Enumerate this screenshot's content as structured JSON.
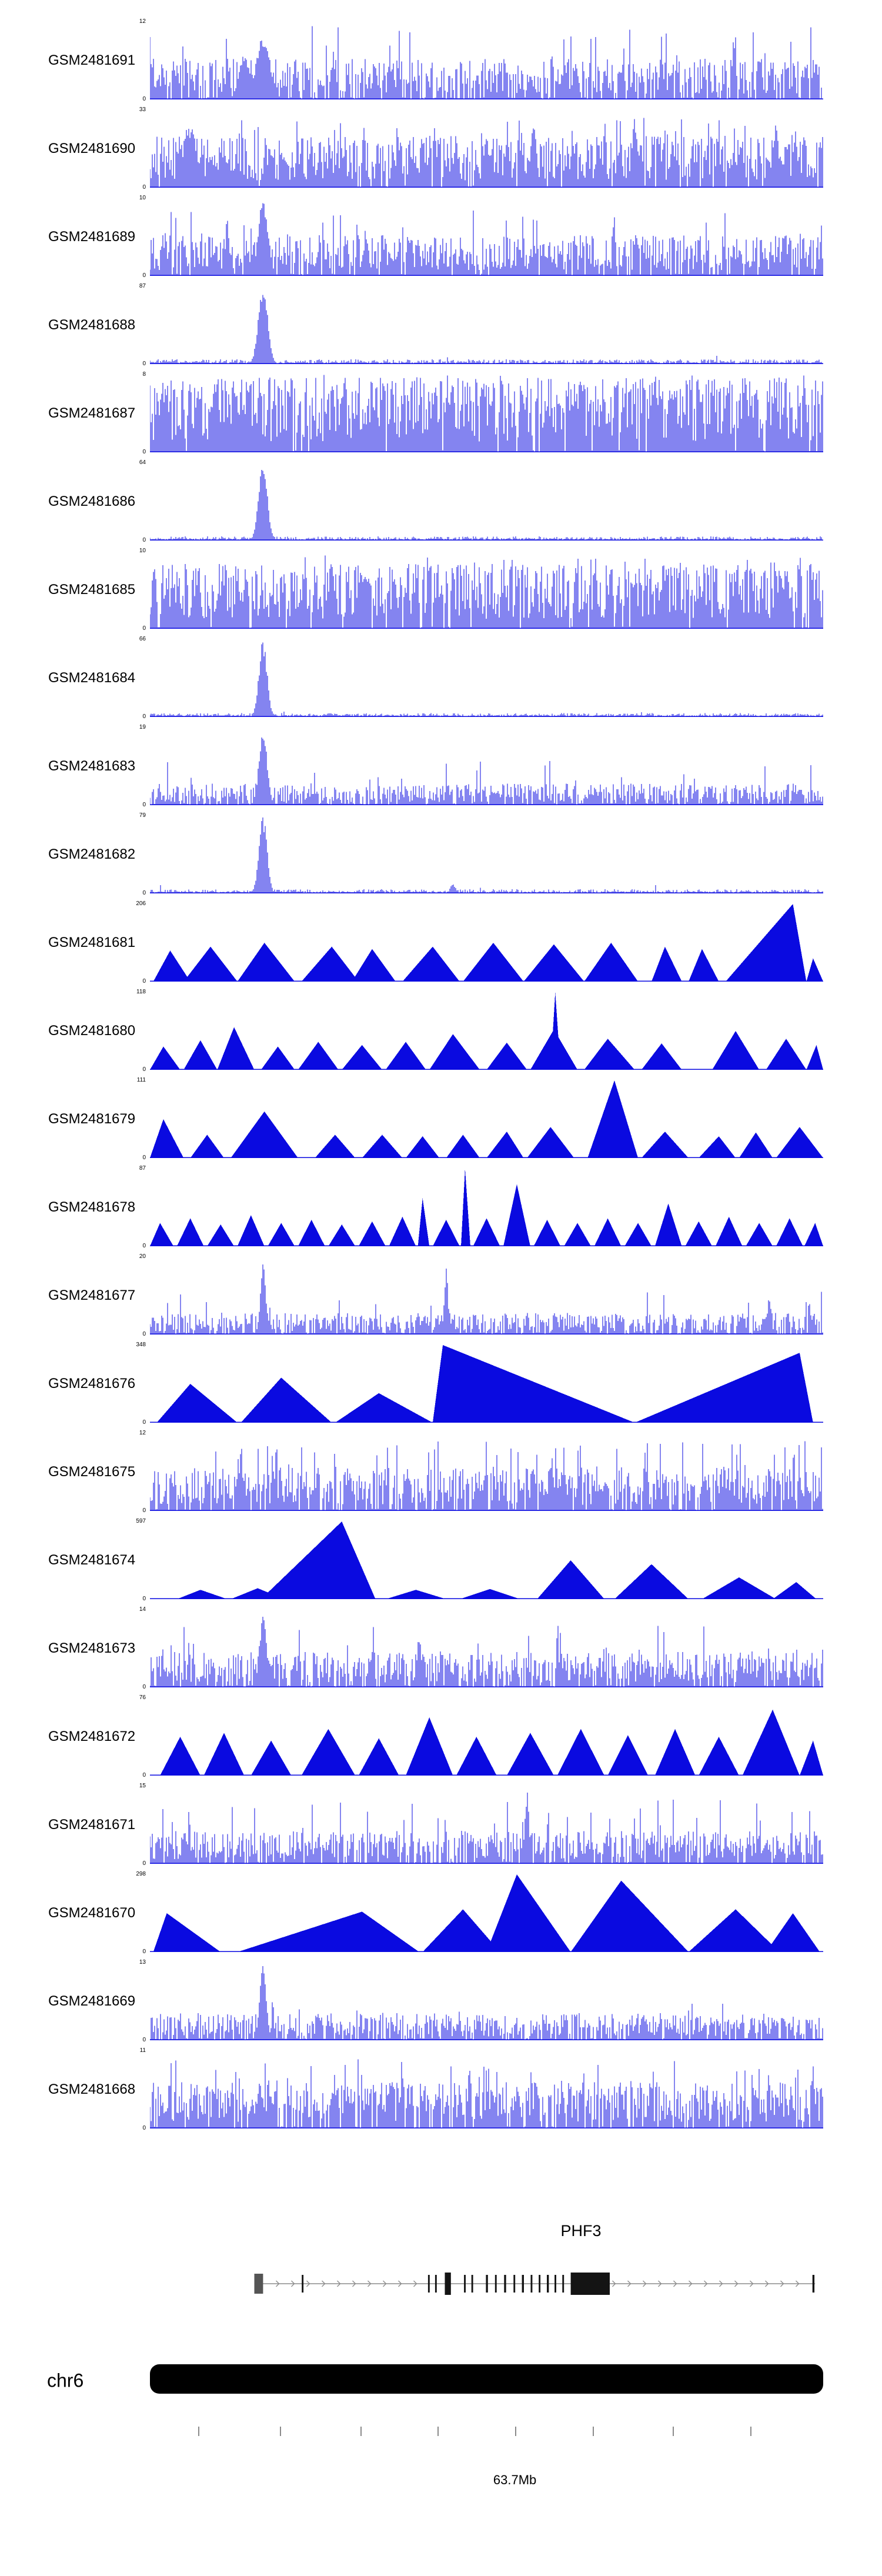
{
  "colors": {
    "signal": "#0a0ae0",
    "exon": "#141414",
    "first_exon": "#555555",
    "gene_line": "#8c8c8c",
    "ideogram": "#000000",
    "axis_tick": "#8a8a8a",
    "text": "#000000",
    "background": "#ffffff"
  },
  "chart_data": {
    "type": "area",
    "title": "",
    "x_axis": {
      "chromosome": "chr6",
      "tick_label": "63.7Mb",
      "label_position": 0.542,
      "tick_positions": [
        0.072,
        0.193,
        0.313,
        0.427,
        0.542,
        0.658,
        0.776,
        0.892
      ]
    },
    "ideogram": {
      "label": "chr6"
    },
    "gene_model": {
      "label": "PHF3",
      "line_start": 0.155,
      "line_end": 0.988,
      "strand_arrows": "right",
      "exons": [
        {
          "x": 0.155,
          "w": 0.013,
          "h": "first"
        },
        {
          "x": 0.2255,
          "w": 0.0025,
          "h": "thin"
        },
        {
          "x": 0.413,
          "w": 0.0025,
          "h": "thin"
        },
        {
          "x": 0.4235,
          "w": 0.0025,
          "h": "thin"
        },
        {
          "x": 0.438,
          "w": 0.009,
          "h": "thick"
        },
        {
          "x": 0.4665,
          "w": 0.0025,
          "h": "thin"
        },
        {
          "x": 0.4775,
          "w": 0.0025,
          "h": "thin"
        },
        {
          "x": 0.499,
          "w": 0.003,
          "h": "thin"
        },
        {
          "x": 0.5125,
          "w": 0.0025,
          "h": "thin"
        },
        {
          "x": 0.526,
          "w": 0.003,
          "h": "thin"
        },
        {
          "x": 0.54,
          "w": 0.0025,
          "h": "thin"
        },
        {
          "x": 0.5525,
          "w": 0.003,
          "h": "thin"
        },
        {
          "x": 0.5655,
          "w": 0.0025,
          "h": "thin"
        },
        {
          "x": 0.5775,
          "w": 0.0025,
          "h": "thin"
        },
        {
          "x": 0.5895,
          "w": 0.003,
          "h": "thin"
        },
        {
          "x": 0.601,
          "w": 0.0025,
          "h": "thin"
        },
        {
          "x": 0.6125,
          "w": 0.0025,
          "h": "thin"
        },
        {
          "x": 0.625,
          "w": 0.058,
          "h": "thick"
        },
        {
          "x": 0.984,
          "w": 0.003,
          "h": "thin"
        }
      ]
    },
    "tracks": [
      {
        "name": "GSM2481691",
        "ymax": 12,
        "ymin": 0,
        "style": "noise",
        "seed": 1,
        "base": 0.3,
        "zero": 0.18,
        "tall": 0.05,
        "tallmin": 0.5,
        "tallmax": 0.95,
        "peaks": [
          [
            0.168,
            0.85,
            0.01
          ],
          [
            0.14,
            0.6,
            0.008
          ]
        ]
      },
      {
        "name": "GSM2481690",
        "ymax": 33,
        "ymin": 0,
        "style": "noise",
        "seed": 2,
        "base": 0.38,
        "zero": 0.08,
        "tall": 0.1,
        "tallmin": 0.5,
        "tallmax": 0.9,
        "peaks": [
          [
            0.06,
            0.8,
            0.01
          ],
          [
            0.57,
            0.95,
            0.004
          ],
          [
            0.72,
            0.9,
            0.004
          ],
          [
            0.93,
            0.85,
            0.004
          ]
        ]
      },
      {
        "name": "GSM2481689",
        "ymax": 10,
        "ymin": 0,
        "style": "noise",
        "seed": 3,
        "base": 0.3,
        "zero": 0.12,
        "tall": 0.07,
        "tallmin": 0.45,
        "tallmax": 0.85,
        "peaks": [
          [
            0.168,
            1.0,
            0.007
          ]
        ]
      },
      {
        "name": "GSM2481688",
        "ymax": 87,
        "ymin": 0,
        "style": "noise",
        "seed": 4,
        "base": 0.035,
        "zero": 0.25,
        "tall": 0.004,
        "tallmin": 0.06,
        "tallmax": 0.12,
        "peaks": [
          [
            0.168,
            1.0,
            0.007
          ]
        ]
      },
      {
        "name": "GSM2481687",
        "ymax": 8,
        "ymin": 0,
        "style": "noise",
        "seed": 5,
        "base": 0.55,
        "zero": 0.03,
        "tall": 0.22,
        "tallmin": 0.6,
        "tallmax": 1.0,
        "peaks": [
          [
            0.45,
            1.0,
            0.003
          ],
          [
            0.75,
            1.0,
            0.004
          ]
        ]
      },
      {
        "name": "GSM2481686",
        "ymax": 64,
        "ymin": 0,
        "style": "noise",
        "seed": 6,
        "base": 0.03,
        "zero": 0.3,
        "tall": 0.003,
        "tallmin": 0.05,
        "tallmax": 0.1,
        "peaks": [
          [
            0.168,
            1.0,
            0.0065
          ]
        ]
      },
      {
        "name": "GSM2481685",
        "ymax": 10,
        "ymin": 0,
        "style": "noise",
        "seed": 7,
        "base": 0.48,
        "zero": 0.05,
        "tall": 0.15,
        "tallmin": 0.55,
        "tallmax": 0.95,
        "peaks": [
          [
            0.27,
            1.0,
            0.004
          ]
        ]
      },
      {
        "name": "GSM2481684",
        "ymax": 66,
        "ymin": 0,
        "style": "noise",
        "seed": 8,
        "base": 0.028,
        "zero": 0.3,
        "tall": 0.003,
        "tallmin": 0.05,
        "tallmax": 0.1,
        "peaks": [
          [
            0.168,
            1.0,
            0.006
          ]
        ]
      },
      {
        "name": "GSM2481683",
        "ymax": 19,
        "ymin": 0,
        "style": "noise",
        "seed": 9,
        "base": 0.16,
        "zero": 0.15,
        "tall": 0.03,
        "tallmin": 0.3,
        "tallmax": 0.6,
        "peaks": [
          [
            0.168,
            1.0,
            0.006
          ]
        ]
      },
      {
        "name": "GSM2481682",
        "ymax": 79,
        "ymin": 0,
        "style": "noise",
        "seed": 10,
        "base": 0.03,
        "zero": 0.3,
        "tall": 0.004,
        "tallmin": 0.05,
        "tallmax": 0.12,
        "peaks": [
          [
            0.168,
            1.0,
            0.006
          ],
          [
            0.45,
            0.12,
            0.004
          ]
        ]
      },
      {
        "name": "GSM2481681",
        "ymax": 206,
        "ymin": 0,
        "style": "triangles",
        "shapes": [
          [
            0.005,
            0.03,
            0.06,
            0.4
          ],
          [
            0.05,
            0.09,
            0.13,
            0.45
          ],
          [
            0.13,
            0.17,
            0.215,
            0.5
          ],
          [
            0.225,
            0.27,
            0.31,
            0.45
          ],
          [
            0.3,
            0.33,
            0.365,
            0.42
          ],
          [
            0.375,
            0.42,
            0.46,
            0.45
          ],
          [
            0.465,
            0.51,
            0.555,
            0.5
          ],
          [
            0.555,
            0.6,
            0.645,
            0.48
          ],
          [
            0.645,
            0.685,
            0.725,
            0.5
          ],
          [
            0.745,
            0.765,
            0.79,
            0.45
          ],
          [
            0.8,
            0.82,
            0.845,
            0.42
          ],
          [
            0.855,
            0.955,
            0.975,
            1.0
          ],
          [
            0.975,
            0.985,
            1.0,
            0.3
          ]
        ]
      },
      {
        "name": "GSM2481680",
        "ymax": 118,
        "ymin": 0,
        "style": "triangles",
        "shapes": [
          [
            0.0,
            0.02,
            0.045,
            0.3
          ],
          [
            0.05,
            0.075,
            0.1,
            0.38
          ],
          [
            0.1,
            0.125,
            0.155,
            0.55
          ],
          [
            0.165,
            0.19,
            0.215,
            0.3
          ],
          [
            0.22,
            0.25,
            0.28,
            0.36
          ],
          [
            0.285,
            0.315,
            0.345,
            0.32
          ],
          [
            0.35,
            0.38,
            0.41,
            0.36
          ],
          [
            0.415,
            0.45,
            0.49,
            0.46
          ],
          [
            0.5,
            0.53,
            0.56,
            0.35
          ],
          [
            0.565,
            0.6,
            0.635,
            0.52
          ],
          [
            0.595,
            0.602,
            0.61,
            1.0
          ],
          [
            0.645,
            0.68,
            0.72,
            0.4
          ],
          [
            0.73,
            0.76,
            0.79,
            0.34
          ],
          [
            0.835,
            0.87,
            0.905,
            0.5
          ],
          [
            0.915,
            0.945,
            0.975,
            0.4
          ],
          [
            0.975,
            0.99,
            1.0,
            0.32
          ]
        ]
      },
      {
        "name": "GSM2481679",
        "ymax": 111,
        "ymin": 0,
        "style": "triangles",
        "shapes": [
          [
            0.0,
            0.02,
            0.05,
            0.5
          ],
          [
            0.06,
            0.085,
            0.11,
            0.3
          ],
          [
            0.12,
            0.17,
            0.22,
            0.6
          ],
          [
            0.245,
            0.275,
            0.305,
            0.3
          ],
          [
            0.315,
            0.345,
            0.375,
            0.3
          ],
          [
            0.38,
            0.405,
            0.43,
            0.28
          ],
          [
            0.44,
            0.465,
            0.49,
            0.3
          ],
          [
            0.5,
            0.53,
            0.555,
            0.34
          ],
          [
            0.56,
            0.595,
            0.63,
            0.4
          ],
          [
            0.65,
            0.69,
            0.725,
            1.0
          ],
          [
            0.73,
            0.765,
            0.8,
            0.34
          ],
          [
            0.815,
            0.845,
            0.87,
            0.28
          ],
          [
            0.875,
            0.9,
            0.925,
            0.33
          ],
          [
            0.93,
            0.965,
            1.0,
            0.4
          ]
        ]
      },
      {
        "name": "GSM2481678",
        "ymax": 87,
        "ymin": 0,
        "style": "triangles",
        "shapes": [
          [
            0.0,
            0.015,
            0.035,
            0.3
          ],
          [
            0.04,
            0.06,
            0.08,
            0.36
          ],
          [
            0.085,
            0.105,
            0.125,
            0.28
          ],
          [
            0.13,
            0.15,
            0.17,
            0.4
          ],
          [
            0.175,
            0.195,
            0.215,
            0.3
          ],
          [
            0.22,
            0.24,
            0.26,
            0.34
          ],
          [
            0.265,
            0.285,
            0.305,
            0.28
          ],
          [
            0.31,
            0.33,
            0.35,
            0.32
          ],
          [
            0.355,
            0.375,
            0.395,
            0.38
          ],
          [
            0.398,
            0.405,
            0.415,
            0.62
          ],
          [
            0.42,
            0.44,
            0.46,
            0.34
          ],
          [
            0.462,
            0.468,
            0.476,
            1.0
          ],
          [
            0.48,
            0.5,
            0.52,
            0.36
          ],
          [
            0.525,
            0.545,
            0.565,
            0.8
          ],
          [
            0.57,
            0.59,
            0.61,
            0.34
          ],
          [
            0.615,
            0.635,
            0.655,
            0.3
          ],
          [
            0.66,
            0.68,
            0.7,
            0.36
          ],
          [
            0.705,
            0.725,
            0.745,
            0.3
          ],
          [
            0.75,
            0.77,
            0.79,
            0.55
          ],
          [
            0.795,
            0.815,
            0.835,
            0.32
          ],
          [
            0.84,
            0.86,
            0.88,
            0.38
          ],
          [
            0.885,
            0.905,
            0.925,
            0.3
          ],
          [
            0.93,
            0.95,
            0.97,
            0.36
          ],
          [
            0.972,
            0.988,
            1.0,
            0.3
          ]
        ]
      },
      {
        "name": "GSM2481677",
        "ymax": 20,
        "ymin": 0,
        "style": "noise",
        "seed": 15,
        "base": 0.16,
        "zero": 0.18,
        "tall": 0.03,
        "tallmin": 0.3,
        "tallmax": 0.55,
        "peaks": [
          [
            0.168,
            0.95,
            0.004
          ],
          [
            0.44,
            0.85,
            0.003
          ],
          [
            0.92,
            0.5,
            0.003
          ]
        ]
      },
      {
        "name": "GSM2481676",
        "ymax": 348,
        "ymin": 0,
        "style": "triangles",
        "shapes": [
          [
            0.01,
            0.06,
            0.13,
            0.5
          ],
          [
            0.135,
            0.195,
            0.27,
            0.58
          ],
          [
            0.275,
            0.34,
            0.42,
            0.38
          ],
          [
            0.42,
            0.435,
            0.72,
            1.0
          ],
          [
            0.72,
            0.965,
            0.985,
            0.9
          ]
        ]
      },
      {
        "name": "GSM2481675",
        "ymax": 12,
        "ymin": 0,
        "style": "noise",
        "seed": 17,
        "base": 0.32,
        "zero": 0.12,
        "tall": 0.1,
        "tallmin": 0.5,
        "tallmax": 0.9,
        "peaks": []
      },
      {
        "name": "GSM2481674",
        "ymax": 597,
        "ymin": 0,
        "style": "triangles",
        "shapes": [
          [
            0.04,
            0.075,
            0.115,
            0.12
          ],
          [
            0.12,
            0.16,
            0.2,
            0.14
          ],
          [
            0.165,
            0.285,
            0.335,
            1.0
          ],
          [
            0.35,
            0.395,
            0.44,
            0.12
          ],
          [
            0.46,
            0.505,
            0.55,
            0.13
          ],
          [
            0.575,
            0.625,
            0.675,
            0.5
          ],
          [
            0.69,
            0.745,
            0.8,
            0.45
          ],
          [
            0.82,
            0.875,
            0.93,
            0.28
          ],
          [
            0.925,
            0.96,
            0.99,
            0.22
          ]
        ]
      },
      {
        "name": "GSM2481673",
        "ymax": 14,
        "ymin": 0,
        "style": "noise",
        "seed": 19,
        "base": 0.26,
        "zero": 0.15,
        "tall": 0.05,
        "tallmin": 0.4,
        "tallmax": 0.8,
        "peaks": [
          [
            0.168,
            1.0,
            0.005
          ],
          [
            0.4,
            0.7,
            0.003
          ]
        ]
      },
      {
        "name": "GSM2481672",
        "ymax": 76,
        "ymin": 0,
        "style": "triangles",
        "shapes": [
          [
            0.015,
            0.045,
            0.075,
            0.5
          ],
          [
            0.08,
            0.11,
            0.14,
            0.55
          ],
          [
            0.15,
            0.18,
            0.21,
            0.45
          ],
          [
            0.225,
            0.265,
            0.305,
            0.6
          ],
          [
            0.31,
            0.34,
            0.37,
            0.48
          ],
          [
            0.38,
            0.415,
            0.45,
            0.75
          ],
          [
            0.455,
            0.485,
            0.515,
            0.5
          ],
          [
            0.53,
            0.565,
            0.6,
            0.55
          ],
          [
            0.605,
            0.64,
            0.675,
            0.6
          ],
          [
            0.68,
            0.71,
            0.74,
            0.52
          ],
          [
            0.75,
            0.78,
            0.81,
            0.6
          ],
          [
            0.815,
            0.845,
            0.875,
            0.5
          ],
          [
            0.88,
            0.925,
            0.965,
            0.85
          ],
          [
            0.965,
            0.985,
            1.0,
            0.45
          ]
        ]
      },
      {
        "name": "GSM2481671",
        "ymax": 15,
        "ymin": 0,
        "style": "noise",
        "seed": 21,
        "base": 0.24,
        "zero": 0.15,
        "tall": 0.06,
        "tallmin": 0.4,
        "tallmax": 0.85,
        "peaks": [
          [
            0.56,
            0.95,
            0.003
          ]
        ]
      },
      {
        "name": "GSM2481670",
        "ymax": 298,
        "ymin": 0,
        "style": "triangles",
        "shapes": [
          [
            0.005,
            0.025,
            0.105,
            0.5
          ],
          [
            0.13,
            0.315,
            0.4,
            0.52
          ],
          [
            0.405,
            0.465,
            0.52,
            0.55
          ],
          [
            0.5,
            0.545,
            0.625,
            1.0
          ],
          [
            0.625,
            0.7,
            0.8,
            0.92
          ],
          [
            0.8,
            0.87,
            0.935,
            0.55
          ],
          [
            0.915,
            0.955,
            0.995,
            0.5
          ]
        ]
      },
      {
        "name": "GSM2481669",
        "ymax": 13,
        "ymin": 0,
        "style": "noise",
        "seed": 23,
        "base": 0.2,
        "zero": 0.18,
        "tall": 0.04,
        "tallmin": 0.3,
        "tallmax": 0.6,
        "peaks": [
          [
            0.168,
            1.0,
            0.005
          ]
        ]
      },
      {
        "name": "GSM2481668",
        "ymax": 11,
        "ymin": 0,
        "style": "noise",
        "seed": 24,
        "base": 0.34,
        "zero": 0.1,
        "tall": 0.1,
        "tallmin": 0.5,
        "tallmax": 0.9,
        "peaks": []
      }
    ]
  }
}
